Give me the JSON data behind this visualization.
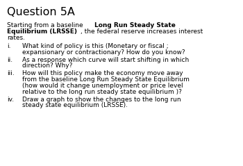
{
  "title": "Question 5A",
  "bg_color": "#ffffff",
  "text_color": "#000000",
  "title_fontsize": 11.5,
  "body_fontsize": 6.5,
  "intro_parts": [
    {
      "text": "Starting from a baseline ",
      "bold": false
    },
    {
      "text": "Long Run Steady State\nEquilibrium (LRSSE)",
      "bold": true
    },
    {
      "text": ", the federal reserve increases interest\nrates.",
      "bold": false
    }
  ],
  "items": [
    {
      "label": "i.",
      "lines": [
        "What kind of policy is this (Monetary or fiscal ;",
        "expansionary or contractionary? How do you know?"
      ]
    },
    {
      "label": "ii.",
      "lines": [
        "As a response which curve will start shifting in which",
        "direction? Why?"
      ]
    },
    {
      "label": "iii.",
      "lines": [
        "How will this policy make the economy move away",
        "from the baseline Long Run Steady State Equilibrium",
        "(how would it change unemployment or price level",
        "relative to the long run steady state equilibrium )?"
      ]
    },
    {
      "label": "iv.",
      "lines": [
        "Draw a graph to show the changes to the long run",
        "steady state equilibrium (LRSSE)."
      ]
    }
  ]
}
